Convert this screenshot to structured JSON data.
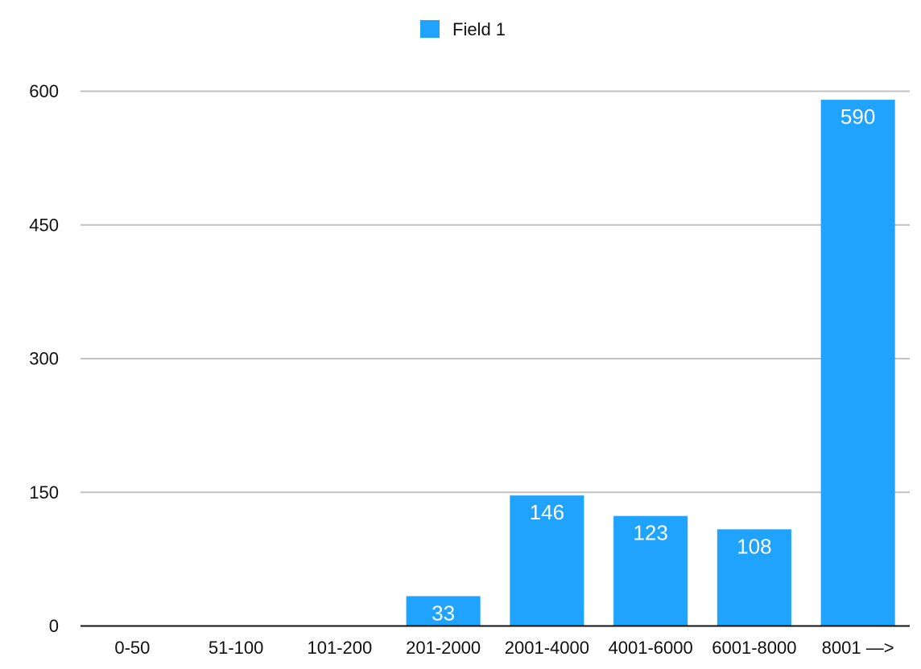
{
  "chart_data": {
    "type": "bar",
    "categories": [
      "0-50",
      "51-100",
      "101-200",
      "201-2000",
      "2001-4000",
      "4001-6000",
      "6001-8000",
      "8001 —>"
    ],
    "series": [
      {
        "name": "Field 1",
        "values": [
          0,
          0,
          0,
          33,
          146,
          123,
          108,
          590
        ],
        "color": "#1fa3fc"
      }
    ],
    "data_labels": [
      "",
      "",
      "",
      "33",
      "146",
      "123",
      "108",
      "590"
    ],
    "title": "",
    "xlabel": "",
    "ylabel": "",
    "ylim": [
      0,
      600
    ],
    "yticks": [
      "0",
      "150",
      "300",
      "450",
      "600"
    ],
    "grid": true,
    "legend": "top-center"
  }
}
